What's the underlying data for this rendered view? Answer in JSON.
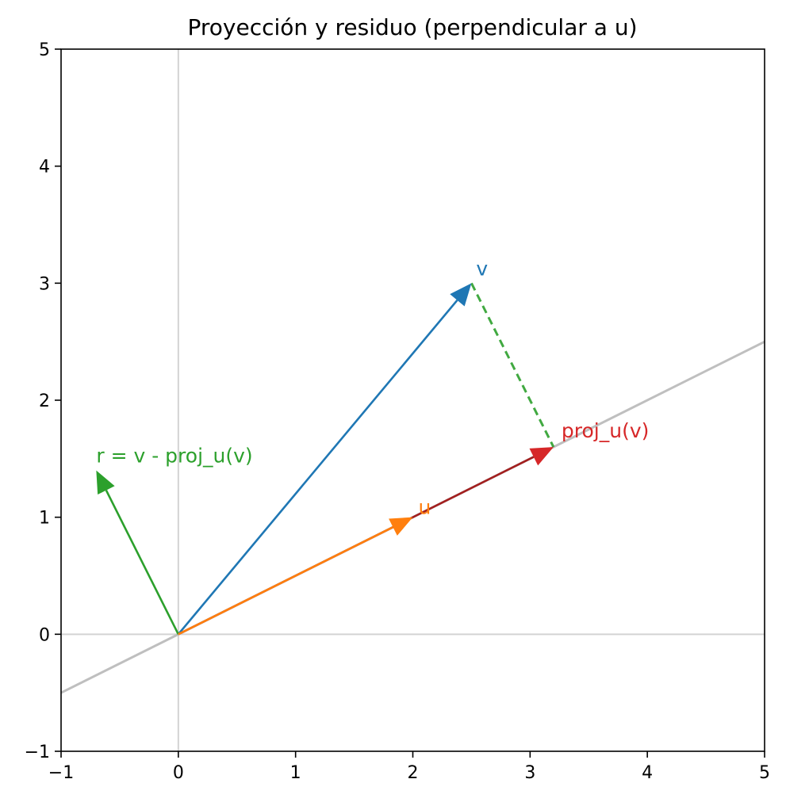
{
  "chart_data": {
    "type": "vector",
    "title": "Proyección y residuo (perpendicular a u)",
    "xlabel": "",
    "ylabel": "",
    "xlim": [
      -1,
      5
    ],
    "ylim": [
      -1,
      5
    ],
    "xticks": [
      -1,
      0,
      1,
      2,
      3,
      4,
      5
    ],
    "yticks": [
      -1,
      0,
      1,
      2,
      3,
      4,
      5
    ],
    "xtick_labels": [
      "−1",
      "0",
      "1",
      "2",
      "3",
      "4",
      "5"
    ],
    "ytick_labels": [
      "−1",
      "0",
      "1",
      "2",
      "3",
      "4",
      "5"
    ],
    "grid": false,
    "reference_lines": [
      {
        "kind": "axis-horizontal",
        "y": 0,
        "color": "#d3d3d3"
      },
      {
        "kind": "axis-vertical",
        "x": 0,
        "color": "#d3d3d3"
      },
      {
        "kind": "span-u",
        "slope": 0.5,
        "intercept": 0,
        "color": "#bfbfbf"
      }
    ],
    "vectors": [
      {
        "id": "v",
        "label": "v",
        "from": [
          0,
          0
        ],
        "to": [
          2.5,
          3.0
        ],
        "color": "#1f77b4"
      },
      {
        "id": "proj",
        "label": "proj_u(v)",
        "from": [
          0,
          0
        ],
        "to": [
          3.2,
          1.6
        ],
        "color": "#d62728",
        "line_color": "#a31f1f"
      },
      {
        "id": "r",
        "label": "r = v - proj_u(v)",
        "from": [
          0,
          0
        ],
        "to": [
          -0.7,
          1.4
        ],
        "color": "#2ca02c"
      },
      {
        "id": "u",
        "label": "u",
        "from": [
          0,
          0
        ],
        "to": [
          2.0,
          1.0
        ],
        "color": "#ff7f0e"
      }
    ],
    "residual_segment": {
      "from": [
        2.5,
        3.0
      ],
      "to": [
        3.2,
        1.6
      ],
      "color": "#2ca02c",
      "style": "dashed"
    }
  }
}
